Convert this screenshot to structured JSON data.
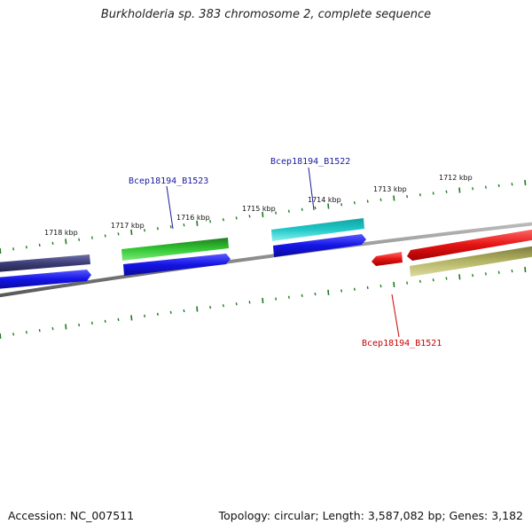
{
  "title": "Burkholderia sp. 383 chromosome 2, complete sequence",
  "footer": {
    "accession": "Accession: NC_007511",
    "summary": "Topology: circular; Length: 3,587,082 bp; Genes: 3,182"
  },
  "ticks": [
    "1718 kbp",
    "1717 kbp",
    "1716 kbp",
    "1715 kbp",
    "1714 kbp",
    "1713 kbp",
    "1712 kbp"
  ],
  "gene_labels": [
    {
      "name": "Bcep18194_B1523",
      "color": "#1a1aa0"
    },
    {
      "name": "Bcep18194_B1522",
      "color": "#1a1aa0"
    },
    {
      "name": "Bcep18194_B1521",
      "color": "#cc0000"
    }
  ],
  "colors": {
    "backbone": "#8a8a8a",
    "tick": "#1e7a1e",
    "blue": "#1414e6",
    "navy": "#3c3c78",
    "green": "#32c832",
    "cyan": "#20c8c8",
    "red": "#e61414",
    "olive": "#b4b464"
  }
}
